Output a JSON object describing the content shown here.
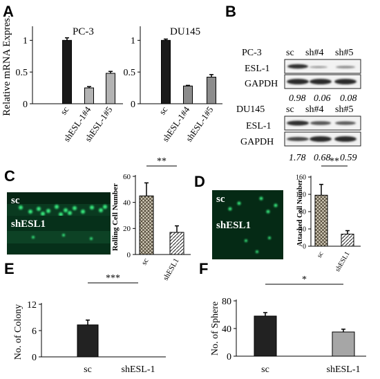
{
  "panels": {
    "a": "A",
    "b": "B",
    "c": "C",
    "d": "D",
    "e": "E",
    "f": "F"
  },
  "chart_data": [
    {
      "id": "A1",
      "type": "bar",
      "title": "PC-3",
      "ylabel": "Relative mRNA Expres.",
      "categories": [
        "sc",
        "shESL-1#4",
        "shESL-1#5"
      ],
      "values": [
        1.0,
        0.25,
        0.48
      ],
      "errors": [
        0.04,
        0.02,
        0.03
      ],
      "ylim": [
        0,
        1.2
      ],
      "yticks": [
        "0",
        "0.5",
        "1"
      ],
      "colors": [
        "#1a1a1a",
        "#b3b3b3",
        "#b3b3b3"
      ]
    },
    {
      "id": "A2",
      "type": "bar",
      "title": "DU145",
      "ylabel": "",
      "categories": [
        "sc",
        "shESL-1#4",
        "shESL-1#5"
      ],
      "values": [
        1.0,
        0.28,
        0.42
      ],
      "errors": [
        0.02,
        0.01,
        0.04
      ],
      "ylim": [
        0,
        1.2
      ],
      "yticks": [
        "0",
        "0.5",
        "1"
      ],
      "colors": [
        "#1a1a1a",
        "#8c8c8c",
        "#8c8c8c"
      ]
    },
    {
      "id": "C",
      "type": "bar",
      "ylabel": "Rolling Cell Number",
      "categories": [
        "sc",
        "shESL1"
      ],
      "values": [
        45,
        17
      ],
      "errors": [
        10,
        5
      ],
      "ylim": [
        0,
        60
      ],
      "yticks": [
        "0",
        "20",
        "40",
        "60"
      ],
      "significance": "**"
    },
    {
      "id": "D",
      "type": "bar",
      "ylabel": "Attached Cell Number",
      "categories": [
        "sc",
        "shESL1"
      ],
      "values": [
        118,
        28
      ],
      "errors": [
        25,
        8
      ],
      "ylim": [
        0,
        160
      ],
      "yticks": [
        "0",
        "40",
        "80",
        "120",
        "160"
      ],
      "significance": "**"
    },
    {
      "id": "E",
      "type": "bar",
      "ylabel": "No. of Colony",
      "categories": [
        "sc",
        "shESL-1"
      ],
      "values": [
        7.3,
        0
      ],
      "errors": [
        1.1,
        0
      ],
      "ylim": [
        0,
        12
      ],
      "yticks": [
        "0",
        "6",
        "12"
      ],
      "significance": "***",
      "colors": [
        "#222222",
        "#222222"
      ]
    },
    {
      "id": "F",
      "type": "bar",
      "ylabel": "No. of Sphere",
      "categories": [
        "sc",
        "shESL-1"
      ],
      "values": [
        58,
        35
      ],
      "errors": [
        5,
        4
      ],
      "ylim": [
        0,
        80
      ],
      "yticks": [
        "0",
        "40",
        "80"
      ],
      "significance": "*",
      "colors": [
        "#222222",
        "#a6a6a6"
      ]
    }
  ],
  "blot": {
    "pc3": {
      "cell_line": "PC-3",
      "lanes": [
        "sc",
        "sh#4",
        "sh#5"
      ],
      "proteins": [
        "ESL-1",
        "GAPDH"
      ],
      "ratios": [
        "0.98",
        "0.06",
        "0.08"
      ]
    },
    "du145": {
      "cell_line": "DU145",
      "lanes": [
        "sc",
        "sh#4",
        "sh#5"
      ],
      "proteins": [
        "ESL-1",
        "GAPDH"
      ],
      "ratios": [
        "1.78",
        "0.68",
        "0.59"
      ]
    }
  },
  "micrographs": {
    "c_top": "sc",
    "c_bottom": "shESL1",
    "d_top": "sc",
    "d_bottom": "shESL1"
  }
}
